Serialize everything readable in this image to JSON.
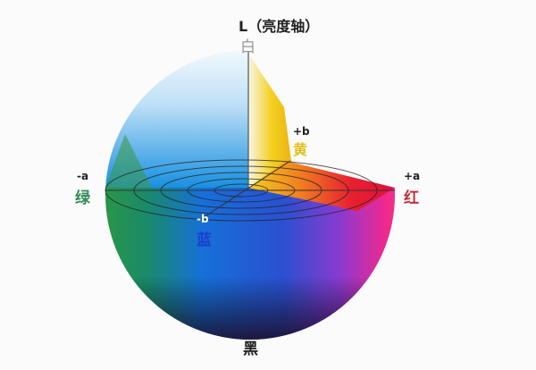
{
  "labels": {
    "l_axis": "L（亮度轴）",
    "white": "白",
    "plus_b": "+b",
    "yellow": "黄",
    "minus_a": "-a",
    "green": "绿",
    "plus_a": "+a",
    "red": "红",
    "minus_b": "-b",
    "blue": "蓝",
    "black": "黑"
  },
  "colors": {
    "green": "#2e8b57",
    "red": "#c0303a",
    "yellow": "#e0c020",
    "blue": "#1a3fd0",
    "text": "#222222"
  }
}
